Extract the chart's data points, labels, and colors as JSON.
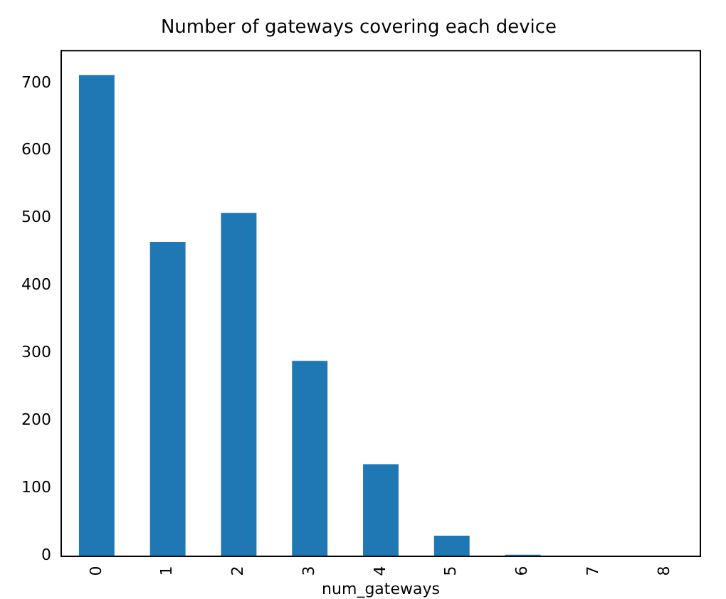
{
  "chart_data": {
    "type": "bar",
    "title": "Number of gateways covering each device",
    "xlabel": "num_gateways",
    "categories": [
      "0",
      "1",
      "2",
      "3",
      "4",
      "5",
      "6",
      "7",
      "8"
    ],
    "values": [
      712,
      465,
      508,
      289,
      136,
      30,
      2,
      0,
      0
    ],
    "color": "#1f77b4",
    "ylim": [
      0,
      748
    ],
    "yticks": [
      0,
      100,
      200,
      300,
      400,
      500,
      600,
      700
    ],
    "grid": false,
    "legend": false
  }
}
